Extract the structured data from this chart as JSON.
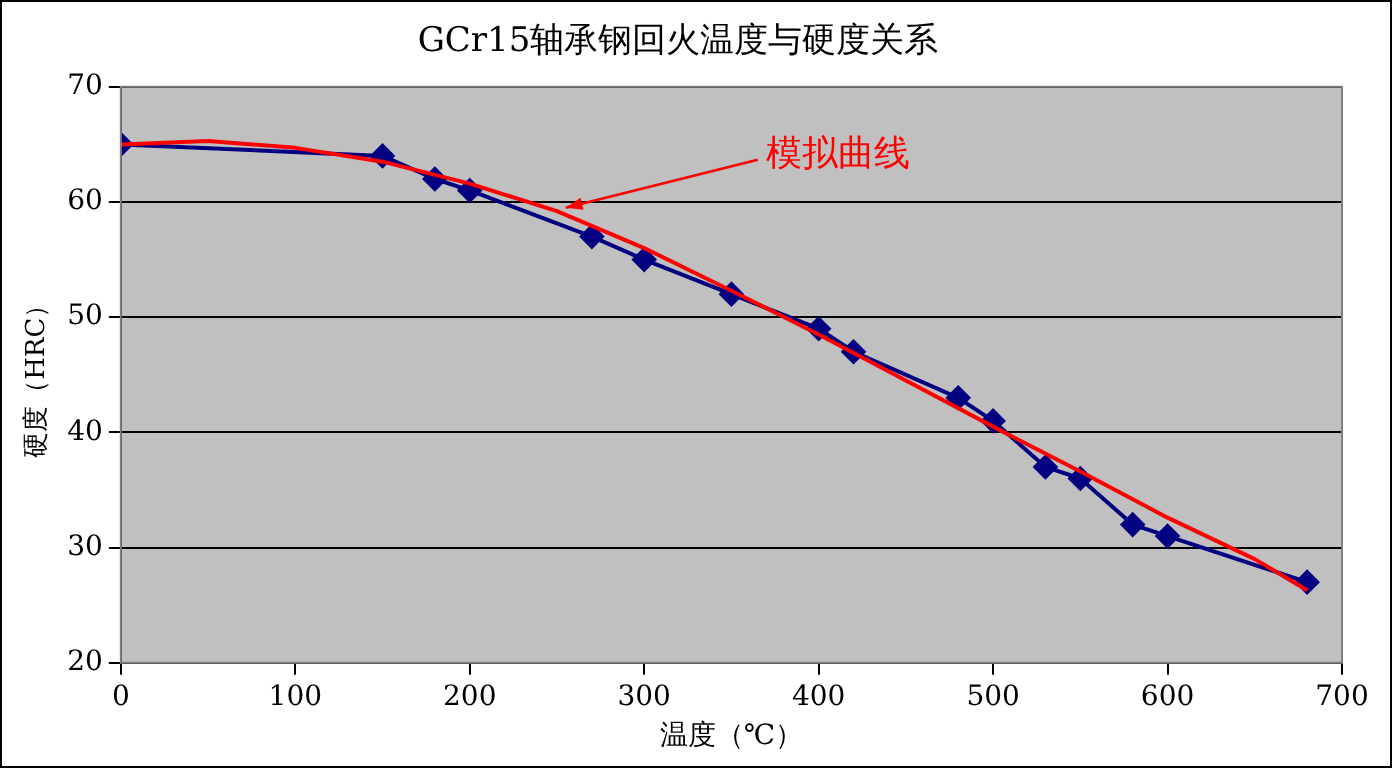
{
  "chart_data": {
    "type": "line",
    "title": "GCr15轴承钢回火温度与硬度关系",
    "xlabel": "温度（℃）",
    "ylabel": "硬度（HRC）",
    "xlim": [
      0,
      700
    ],
    "xticks": [
      0,
      100,
      200,
      300,
      400,
      500,
      600,
      700
    ],
    "ylim": [
      20,
      70
    ],
    "yticks": [
      20,
      30,
      40,
      50,
      60,
      70
    ],
    "grid": "y",
    "legend": false,
    "series": [
      {
        "color": "#000080",
        "marker": "diamond",
        "x": [
          0,
          150,
          180,
          200,
          270,
          300,
          350,
          400,
          420,
          480,
          500,
          530,
          550,
          580,
          600,
          680
        ],
        "values": [
          65,
          64,
          62,
          61,
          57,
          55,
          52,
          49,
          47,
          43,
          41,
          37,
          36,
          32,
          31,
          27
        ]
      },
      {
        "color": "#ff0000",
        "marker": "none",
        "x": [
          0,
          50,
          100,
          150,
          200,
          250,
          300,
          350,
          400,
          450,
          500,
          550,
          600,
          650,
          680
        ],
        "values": [
          65,
          65.3,
          64.7,
          63.5,
          61.6,
          59.2,
          56,
          52.3,
          48.5,
          44.5,
          40.5,
          36.6,
          32.6,
          29,
          26.3
        ]
      }
    ],
    "annotations": [
      {
        "text": "模拟曲线",
        "x": 255,
        "y": 59.5
      }
    ]
  }
}
